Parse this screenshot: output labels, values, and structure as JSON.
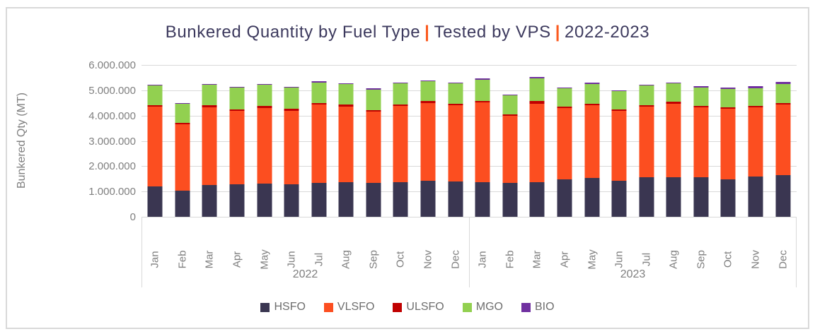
{
  "title": {
    "part_fuel": "Bunkered Quantity by Fuel Type",
    "separator": "|",
    "part_tested": "Tested by VPS",
    "part_years": "2022-2023"
  },
  "y_axis": {
    "title": "Bunkered Qty (MT)",
    "tick_labels": [
      "6.000.000",
      "5.000.000",
      "4.000.000",
      "3.000.000",
      "2.000.000",
      "1.000.000",
      "0"
    ]
  },
  "colors": {
    "title_text": "#3d3a5e",
    "title_separator": "#fb5a1f",
    "axis_text": "#7f7f7f",
    "gridline": "#d9d9d9",
    "hsfo": "#3a3651",
    "vlsfo": "#fc4e20",
    "ulsfo": "#c00000",
    "mgo": "#92d050",
    "bio": "#7030a0"
  },
  "chart_data": {
    "type": "bar",
    "stacked": true,
    "title": "Bunkered Quantity by Fuel Type | Tested by VPS | 2022-2023",
    "ylabel": "Bunkered Qty (MT)",
    "ylim": [
      0,
      6000000
    ],
    "y_tick_interval": 1000000,
    "grid": true,
    "legend_position": "bottom",
    "categories": [
      "Jan",
      "Feb",
      "Mar",
      "Apr",
      "May",
      "Jun",
      "Jul",
      "Aug",
      "Sep",
      "Oct",
      "Nov",
      "Dec"
    ],
    "groups": [
      "2022",
      "2023"
    ],
    "series": [
      {
        "name": "HSFO",
        "color": "#3a3651",
        "values": {
          "2022": [
            1200000,
            1020000,
            1260000,
            1280000,
            1300000,
            1280000,
            1330000,
            1380000,
            1330000,
            1360000,
            1420000,
            1400000
          ],
          "2023": [
            1380000,
            1330000,
            1380000,
            1470000,
            1540000,
            1420000,
            1560000,
            1560000,
            1560000,
            1490000,
            1590000,
            1660000
          ]
        }
      },
      {
        "name": "VLSFO",
        "color": "#fc4e20",
        "values": {
          "2022": [
            3150000,
            2640000,
            3070000,
            2910000,
            3000000,
            2900000,
            3100000,
            2980000,
            2820000,
            3010000,
            3070000,
            3000000
          ],
          "2023": [
            3140000,
            2670000,
            3090000,
            2820000,
            2860000,
            2770000,
            2790000,
            2910000,
            2770000,
            2790000,
            2730000,
            2770000
          ]
        }
      },
      {
        "name": "ULSFO",
        "color": "#c00000",
        "values": {
          "2022": [
            65000,
            65000,
            90000,
            65000,
            90000,
            100000,
            65000,
            75000,
            65000,
            75000,
            95000,
            60000
          ],
          "2023": [
            65000,
            55000,
            95000,
            65000,
            65000,
            65000,
            65000,
            85000,
            65000,
            60000,
            60000,
            65000
          ]
        }
      },
      {
        "name": "MGO",
        "color": "#92d050",
        "values": {
          "2022": [
            775000,
            745000,
            810000,
            850000,
            820000,
            830000,
            820000,
            820000,
            810000,
            820000,
            770000,
            820000
          ],
          "2023": [
            820000,
            755000,
            910000,
            715000,
            790000,
            715000,
            775000,
            710000,
            715000,
            715000,
            710000,
            745000
          ]
        }
      },
      {
        "name": "BIO",
        "color": "#7030a0",
        "values": {
          "2022": [
            30000,
            30000,
            30000,
            30000,
            30000,
            40000,
            40000,
            30000,
            50000,
            30000,
            30000,
            30000
          ],
          "2023": [
            65000,
            30000,
            50000,
            40000,
            40000,
            40000,
            40000,
            50000,
            50000,
            40000,
            60000,
            90000
          ]
        }
      }
    ]
  },
  "legend": [
    {
      "label": "HSFO",
      "color": "#3a3651"
    },
    {
      "label": "VLSFO",
      "color": "#fc4e20"
    },
    {
      "label": "ULSFO",
      "color": "#c00000"
    },
    {
      "label": "MGO",
      "color": "#92d050"
    },
    {
      "label": "BIO",
      "color": "#7030a0"
    }
  ]
}
